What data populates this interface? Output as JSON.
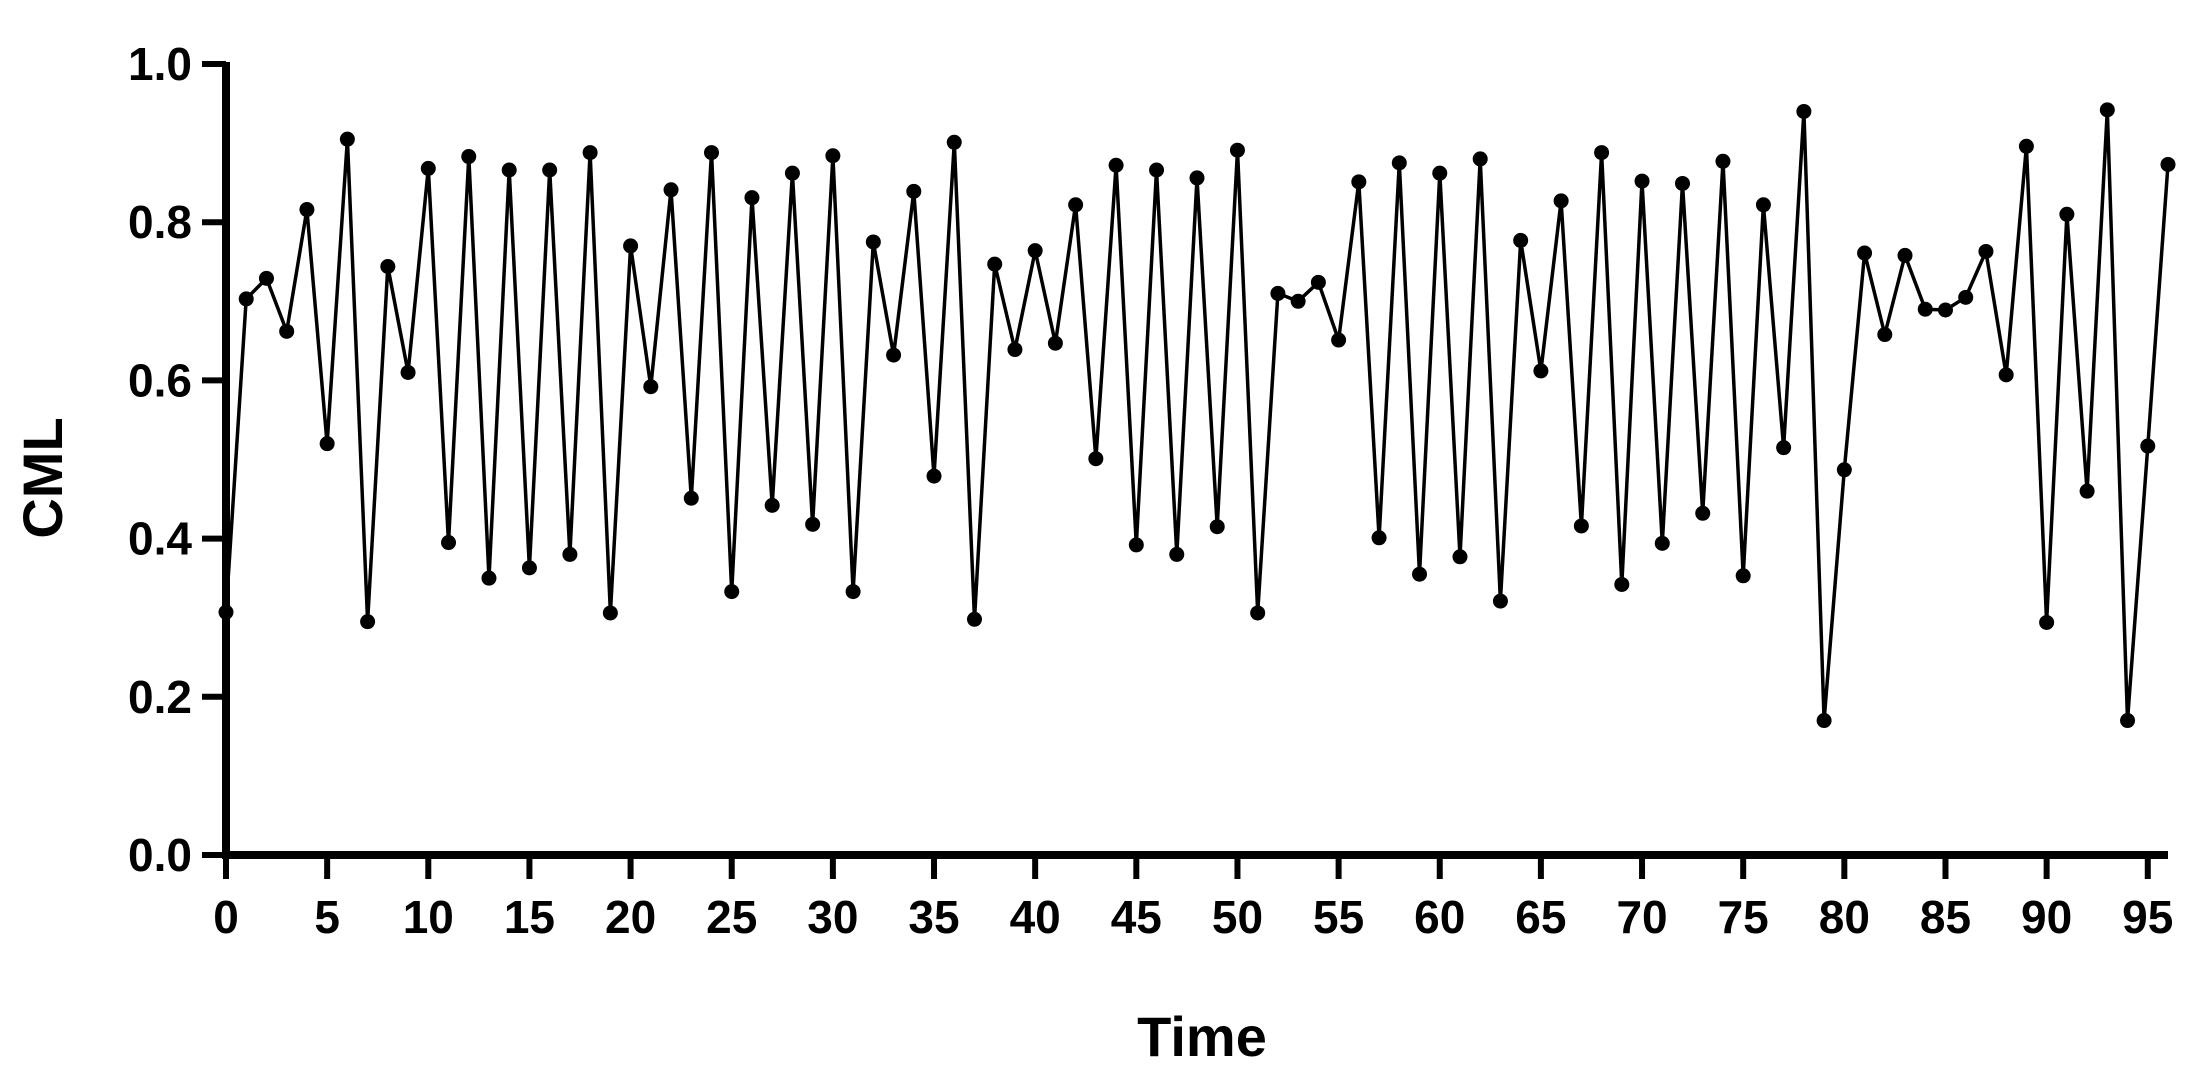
{
  "chart_data": {
    "type": "line",
    "title": "",
    "xlabel": "Time",
    "ylabel": "CML",
    "xlim": [
      0,
      96
    ],
    "ylim": [
      0.0,
      1.0
    ],
    "x_ticks": [
      0,
      5,
      10,
      15,
      20,
      25,
      30,
      35,
      40,
      45,
      50,
      55,
      60,
      65,
      70,
      75,
      80,
      85,
      90,
      95
    ],
    "x_tick_labels": [
      "0",
      "5",
      "10",
      "15",
      "20",
      "25",
      "30",
      "35",
      "40",
      "45",
      "50",
      "55",
      "60",
      "65",
      "70",
      "75",
      "80",
      "85",
      "90",
      "95"
    ],
    "y_ticks": [
      0.0,
      0.2,
      0.4,
      0.6,
      0.8,
      1.0
    ],
    "y_tick_labels": [
      "0.0",
      "0.2",
      "0.4",
      "0.6",
      "0.8",
      "1.0"
    ],
    "grid": false,
    "marker": "circle",
    "color": "#000000",
    "series": [
      {
        "x": [
          0,
          1,
          2,
          3,
          4,
          5,
          6,
          7,
          8,
          9,
          10,
          11,
          12,
          13,
          14,
          15,
          16,
          17,
          18,
          19,
          20,
          21,
          22,
          23,
          24,
          25,
          26,
          27,
          28,
          29,
          30,
          31,
          32,
          33,
          34,
          35,
          36,
          37,
          38,
          39,
          40,
          41,
          42,
          43,
          44,
          45,
          46,
          47,
          48,
          49,
          50,
          51,
          52,
          53,
          54,
          55,
          56,
          57,
          58,
          59,
          60,
          61,
          62,
          63,
          64,
          65,
          66,
          67,
          68,
          69,
          70,
          71,
          72,
          73,
          74,
          75,
          76,
          77,
          78,
          79,
          80,
          81,
          82,
          83,
          84,
          85,
          86,
          87,
          88,
          89,
          90,
          91,
          92,
          93,
          94,
          95,
          96
        ],
        "values": [
          0.307,
          0.703,
          0.729,
          0.662,
          0.816,
          0.52,
          0.905,
          0.295,
          0.744,
          0.61,
          0.868,
          0.395,
          0.883,
          0.35,
          0.866,
          0.363,
          0.866,
          0.38,
          0.888,
          0.306,
          0.77,
          0.592,
          0.841,
          0.451,
          0.888,
          0.333,
          0.831,
          0.442,
          0.862,
          0.418,
          0.884,
          0.333,
          0.775,
          0.632,
          0.839,
          0.479,
          0.901,
          0.298,
          0.747,
          0.639,
          0.764,
          0.647,
          0.822,
          0.501,
          0.872,
          0.392,
          0.866,
          0.38,
          0.856,
          0.415,
          0.891,
          0.306,
          0.71,
          0.7,
          0.724,
          0.651,
          0.851,
          0.401,
          0.875,
          0.355,
          0.862,
          0.377,
          0.88,
          0.321,
          0.777,
          0.612,
          0.827,
          0.416,
          0.888,
          0.342,
          0.852,
          0.394,
          0.849,
          0.432,
          0.877,
          0.353,
          0.822,
          0.515,
          0.94,
          0.17,
          0.487,
          0.761,
          0.658,
          0.758,
          0.69,
          0.689,
          0.705,
          0.763,
          0.607,
          0.896,
          0.294,
          0.81,
          0.46,
          0.942,
          0.17,
          0.517,
          0.873
        ]
      }
    ]
  }
}
